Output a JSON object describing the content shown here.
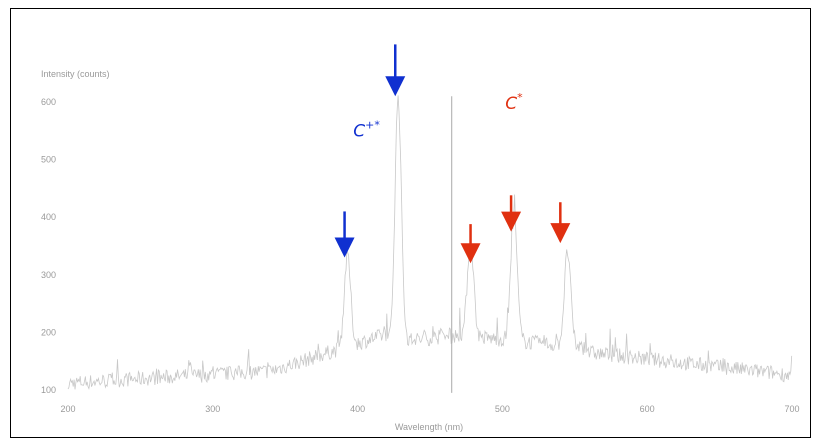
{
  "chart_data": {
    "type": "line",
    "ylabel": "Intensity (counts)",
    "xlabel": "Wavelength (nm)",
    "xlim": [
      200,
      700
    ],
    "ylim": [
      95,
      630
    ],
    "x_ticks": [
      200,
      300,
      400,
      500,
      600,
      700
    ],
    "y_ticks": [
      100,
      200,
      300,
      400,
      500,
      600
    ],
    "grid": false,
    "series": [
      {
        "color": "#c8c8c8",
        "peaks": [
          {
            "x": 284,
            "y": 150
          },
          {
            "x": 393,
            "y": 333
          },
          {
            "x": 428,
            "y": 608
          },
          {
            "x": 478,
            "y": 360
          },
          {
            "x": 508,
            "y": 405
          },
          {
            "x": 545,
            "y": 340
          }
        ],
        "reference_line_x": 465
      }
    ],
    "annotations": [
      {
        "label": "C",
        "sup": "+*",
        "color": "#1030d0",
        "x": 397,
        "y": 540
      },
      {
        "label": "C",
        "sup": "*",
        "color": "#e03010",
        "x": 502,
        "y": 588
      }
    ],
    "arrows": [
      {
        "x": 391,
        "y_top": 410,
        "y_bottom": 330,
        "color": "#1030d0"
      },
      {
        "x": 426,
        "y_top": 700,
        "y_bottom": 610,
        "color": "#1030d0"
      },
      {
        "x": 478,
        "y_top": 388,
        "y_bottom": 320,
        "color": "#e03010"
      },
      {
        "x": 506,
        "y_top": 438,
        "y_bottom": 375,
        "color": "#e03010"
      },
      {
        "x": 540,
        "y_top": 426,
        "y_bottom": 355,
        "color": "#e03010"
      }
    ]
  }
}
